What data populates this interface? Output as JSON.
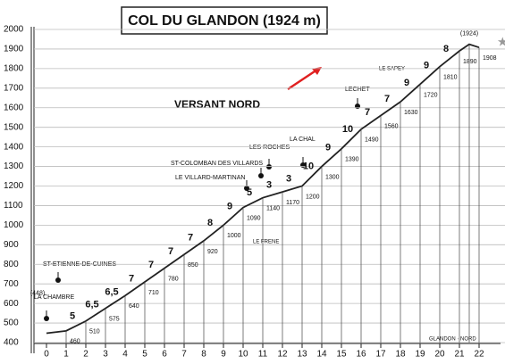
{
  "chart_data": {
    "type": "line",
    "title": "COL DU GLANDON (1924 m)",
    "subtitle": "VERSANT NORD",
    "x": [
      0,
      1,
      2,
      3,
      4,
      5,
      6,
      7,
      8,
      9,
      10,
      11,
      12,
      13,
      14,
      15,
      16,
      17,
      18,
      19,
      20,
      21,
      21.5,
      22
    ],
    "y": [
      448,
      460,
      510,
      575,
      640,
      710,
      780,
      850,
      920,
      1000,
      1090,
      1140,
      1170,
      1200,
      1300,
      1390,
      1490,
      1560,
      1630,
      1720,
      1810,
      1890,
      1924,
      1908
    ],
    "value_labels": [
      "(448)",
      "460",
      "510",
      "575",
      "640",
      "710",
      "780",
      "850",
      "920",
      "1000",
      "1090",
      "1140",
      "1170",
      "1200",
      "1300",
      "1390",
      "1490",
      "1560",
      "1630",
      "1720",
      "1810",
      "1890",
      "(1924)",
      "1908"
    ],
    "color": "#222222",
    "gradient": {
      "values": [
        5,
        6.5,
        6.5,
        7,
        7,
        7,
        7,
        8,
        9,
        5,
        3,
        3,
        10,
        9,
        10,
        7,
        7,
        9,
        9,
        8
      ],
      "value_labels": [
        "5",
        "6,5",
        "6,5",
        "7",
        "7",
        "7",
        "7",
        "8",
        "9",
        "5",
        "3",
        "3",
        "10",
        "9",
        "10",
        "7",
        "7",
        "9",
        "9",
        "8"
      ]
    },
    "places": [
      "LA CHAMBRE",
      "ST-ETIENNE-DE-CUINES",
      "LE VILLARD-MARTINAN",
      "ST-COLOMBAN DES VILLARDS",
      "LES ROCHES",
      "LA CHAL",
      "LECHET",
      "LE SAPEY",
      "LE FRENE"
    ],
    "note": "GLANDON · NORD",
    "xlim": [
      0,
      22
    ],
    "xticks": [
      0,
      1,
      2,
      3,
      4,
      5,
      6,
      7,
      8,
      9,
      10,
      11,
      12,
      13,
      14,
      15,
      16,
      17,
      18,
      19,
      20,
      21,
      22
    ],
    "ylim": [
      400,
      2000
    ],
    "yticks": [
      400,
      500,
      600,
      700,
      800,
      900,
      1000,
      1100,
      1200,
      1300,
      1400,
      1500,
      1600,
      1700,
      1800,
      1900,
      2000
    ],
    "grid": true
  }
}
